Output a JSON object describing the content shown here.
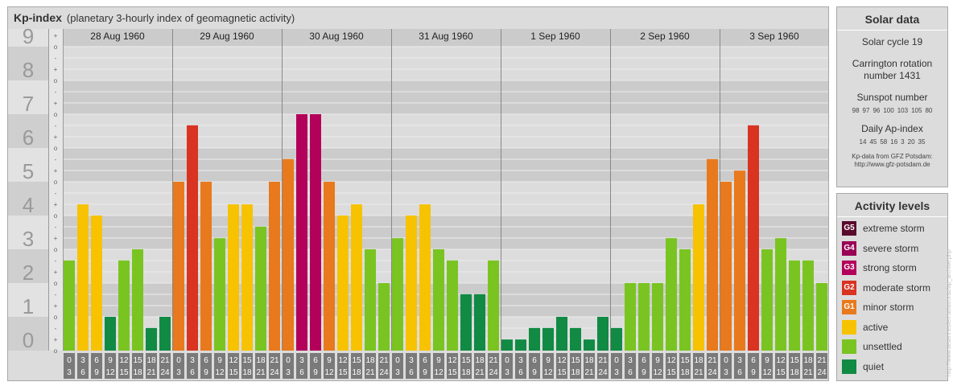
{
  "header": {
    "title": "Kp-index",
    "subtitle": "(planetary 3-hourly index of geomagnetic activity)"
  },
  "chart_data": {
    "type": "bar",
    "title": "Kp-index",
    "subtitle": "(planetary 3-hourly index of geomagnetic activity)",
    "yticks": [
      "0",
      "1",
      "2",
      "3",
      "4",
      "5",
      "6",
      "7",
      "8",
      "9"
    ],
    "ylim": [
      0,
      9.33
    ],
    "subticks": [
      "-",
      "o",
      "+"
    ],
    "days": [
      "28 Aug 1960",
      "29 Aug 1960",
      "30 Aug 1960",
      "31 Aug 1960",
      "1 Sep 1960",
      "2 Sep 1960",
      "3 Sep 1960"
    ],
    "hour_labels_top": [
      "0",
      "3",
      "6",
      "9",
      "12",
      "15",
      "18",
      "21"
    ],
    "hour_labels_bottom": [
      "3",
      "6",
      "9",
      "12",
      "15",
      "18",
      "21",
      "24"
    ],
    "values": [
      [
        2.67,
        4.33,
        4.0,
        1.0,
        2.67,
        3.0,
        0.67,
        1.0
      ],
      [
        5.0,
        6.67,
        5.0,
        3.33,
        4.33,
        4.33,
        3.67,
        5.0
      ],
      [
        5.67,
        7.0,
        7.0,
        5.0,
        4.0,
        4.33,
        3.0,
        2.0
      ],
      [
        3.33,
        4.0,
        4.33,
        3.0,
        2.67,
        1.67,
        1.67,
        2.67
      ],
      [
        0.33,
        0.33,
        0.67,
        0.67,
        1.0,
        0.67,
        0.33,
        1.0
      ],
      [
        0.67,
        2.0,
        2.0,
        2.0,
        3.33,
        3.0,
        4.33,
        5.67
      ],
      [
        5.0,
        5.33,
        6.67,
        3.0,
        3.33,
        2.67,
        2.67,
        2.0
      ]
    ],
    "grid": true
  },
  "solar": {
    "title": "Solar data",
    "cycle": "Solar cycle 19",
    "carrington_1": "Carrington rotation",
    "carrington_2": "number 1431",
    "sunspot_label": "Sunspot number",
    "sunspots": [
      "98",
      "97",
      "96",
      "100",
      "103",
      "105",
      "80"
    ],
    "ap_label": "Daily Ap-index",
    "ap": [
      "14",
      "45",
      "58",
      "16",
      "3",
      "20",
      "35"
    ],
    "credit_1": "Kp-data from GFZ Potsdam:",
    "credit_2": "http://www.gfz-potsdam.de"
  },
  "activity": {
    "title": "Activity levels",
    "items": [
      {
        "code": "G5",
        "label": "extreme storm",
        "color": "#5a0a2c"
      },
      {
        "code": "G4",
        "label": "severe storm",
        "color": "#990055"
      },
      {
        "code": "G3",
        "label": "strong storm",
        "color": "#b3005a"
      },
      {
        "code": "G2",
        "label": "moderate storm",
        "color": "#d93322"
      },
      {
        "code": "G1",
        "label": "minor storm",
        "color": "#e8791c"
      },
      {
        "code": "",
        "label": "active",
        "color": "#f7c200"
      },
      {
        "code": "",
        "label": "unsettled",
        "color": "#7ac422"
      },
      {
        "code": "",
        "label": "quiet",
        "color": "#118a44"
      }
    ]
  },
  "side_url": "http://www.tiesenheuferl.at/auroraz/ap_archive.php"
}
